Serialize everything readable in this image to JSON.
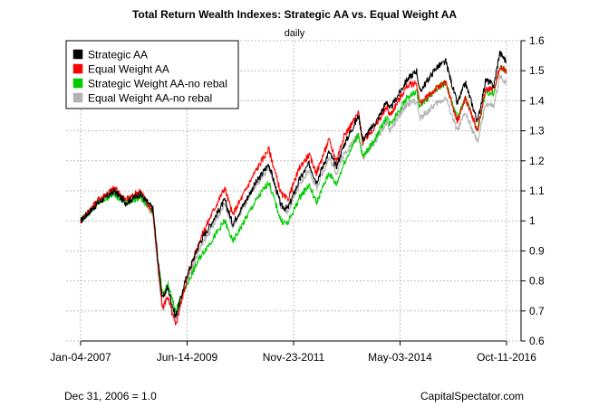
{
  "chart_data": {
    "type": "line",
    "title": "Total Return Wealth Indexes: Strategic AA vs. Equal Weight AA",
    "subtitle": "daily",
    "footnote_left": "Dec 31, 2006 = 1.0",
    "footnote_right": "CapitalSpectator.com",
    "x_tick_labels": [
      "Jan-04-2007",
      "Jun-14-2009",
      "Nov-23-2011",
      "May-03-2014",
      "Oct-11-2016"
    ],
    "y_ticks": [
      0.6,
      0.7,
      0.8,
      0.9,
      1.0,
      1.1,
      1.2,
      1.3,
      1.4,
      1.5,
      1.6
    ],
    "y_tick_labels": [
      "0.6",
      "0.7",
      "0.8",
      "0.9",
      "1",
      "1.1",
      "1.2",
      "1.3",
      "1.4",
      "1.5",
      "1.6"
    ],
    "ylim": [
      0.6,
      1.6
    ],
    "xlim": [
      "2007-01-04",
      "2016-10-11"
    ],
    "y_axis_side": "right",
    "grid": true,
    "legend_position": "top-left",
    "series": [
      {
        "name": "Strategic AA",
        "color": "#000000",
        "points": [
          [
            "2007-01-04",
            1.0
          ],
          [
            "2007-06-01",
            1.06
          ],
          [
            "2007-10-15",
            1.1
          ],
          [
            "2008-01-15",
            1.06
          ],
          [
            "2008-05-15",
            1.09
          ],
          [
            "2008-09-01",
            1.04
          ],
          [
            "2008-10-15",
            0.86
          ],
          [
            "2008-11-20",
            0.74
          ],
          [
            "2009-01-01",
            0.78
          ],
          [
            "2009-03-09",
            0.68
          ],
          [
            "2009-06-14",
            0.82
          ],
          [
            "2009-10-01",
            0.93
          ],
          [
            "2010-01-15",
            1.0
          ],
          [
            "2010-04-25",
            1.07
          ],
          [
            "2010-07-01",
            0.99
          ],
          [
            "2010-12-31",
            1.12
          ],
          [
            "2011-04-29",
            1.19
          ],
          [
            "2011-08-10",
            1.05
          ],
          [
            "2011-10-04",
            1.04
          ],
          [
            "2012-01-15",
            1.14
          ],
          [
            "2012-04-01",
            1.19
          ],
          [
            "2012-06-01",
            1.13
          ],
          [
            "2012-09-15",
            1.23
          ],
          [
            "2012-11-15",
            1.18
          ],
          [
            "2013-01-15",
            1.25
          ],
          [
            "2013-05-21",
            1.35
          ],
          [
            "2013-06-25",
            1.27
          ],
          [
            "2013-10-15",
            1.33
          ],
          [
            "2014-01-15",
            1.4
          ],
          [
            "2014-02-05",
            1.37
          ],
          [
            "2014-06-30",
            1.47
          ],
          [
            "2014-09-19",
            1.5
          ],
          [
            "2014-10-15",
            1.43
          ],
          [
            "2015-03-01",
            1.51
          ],
          [
            "2015-05-21",
            1.53
          ],
          [
            "2015-08-25",
            1.39
          ],
          [
            "2015-11-01",
            1.46
          ],
          [
            "2016-02-11",
            1.33
          ],
          [
            "2016-04-20",
            1.47
          ],
          [
            "2016-06-27",
            1.45
          ],
          [
            "2016-08-15",
            1.56
          ],
          [
            "2016-10-11",
            1.53
          ]
        ]
      },
      {
        "name": "Equal Weight AA",
        "color": "#ff0000",
        "points": [
          [
            "2007-01-04",
            1.0
          ],
          [
            "2007-06-01",
            1.07
          ],
          [
            "2007-10-15",
            1.11
          ],
          [
            "2008-01-15",
            1.07
          ],
          [
            "2008-05-15",
            1.1
          ],
          [
            "2008-09-01",
            1.03
          ],
          [
            "2008-10-15",
            0.84
          ],
          [
            "2008-11-20",
            0.71
          ],
          [
            "2009-01-01",
            0.75
          ],
          [
            "2009-03-09",
            0.65
          ],
          [
            "2009-06-14",
            0.81
          ],
          [
            "2009-10-01",
            0.94
          ],
          [
            "2010-01-15",
            1.03
          ],
          [
            "2010-04-25",
            1.11
          ],
          [
            "2010-07-01",
            1.02
          ],
          [
            "2010-12-31",
            1.16
          ],
          [
            "2011-04-29",
            1.24
          ],
          [
            "2011-08-10",
            1.09
          ],
          [
            "2011-10-04",
            1.07
          ],
          [
            "2012-01-15",
            1.18
          ],
          [
            "2012-04-01",
            1.22
          ],
          [
            "2012-06-01",
            1.16
          ],
          [
            "2012-09-15",
            1.27
          ],
          [
            "2012-11-15",
            1.2
          ],
          [
            "2013-01-15",
            1.28
          ],
          [
            "2013-05-21",
            1.36
          ],
          [
            "2013-06-25",
            1.26
          ],
          [
            "2013-10-15",
            1.32
          ],
          [
            "2014-01-15",
            1.38
          ],
          [
            "2014-02-05",
            1.35
          ],
          [
            "2014-06-30",
            1.45
          ],
          [
            "2014-09-19",
            1.46
          ],
          [
            "2014-10-15",
            1.39
          ],
          [
            "2015-03-01",
            1.44
          ],
          [
            "2015-05-21",
            1.46
          ],
          [
            "2015-08-25",
            1.33
          ],
          [
            "2015-11-01",
            1.41
          ],
          [
            "2016-02-11",
            1.3
          ],
          [
            "2016-04-20",
            1.44
          ],
          [
            "2016-06-27",
            1.44
          ],
          [
            "2016-08-15",
            1.51
          ],
          [
            "2016-10-11",
            1.5
          ]
        ]
      },
      {
        "name": "Strategic Weight AA-no rebal",
        "color": "#00cc00",
        "points": [
          [
            "2007-01-04",
            1.0
          ],
          [
            "2007-06-01",
            1.06
          ],
          [
            "2007-10-15",
            1.09
          ],
          [
            "2008-01-15",
            1.06
          ],
          [
            "2008-05-15",
            1.08
          ],
          [
            "2008-09-01",
            1.03
          ],
          [
            "2008-10-15",
            0.86
          ],
          [
            "2008-11-20",
            0.75
          ],
          [
            "2009-01-01",
            0.79
          ],
          [
            "2009-03-09",
            0.7
          ],
          [
            "2009-06-14",
            0.79
          ],
          [
            "2009-10-01",
            0.88
          ],
          [
            "2010-01-15",
            0.94
          ],
          [
            "2010-04-25",
            1.0
          ],
          [
            "2010-07-01",
            0.93
          ],
          [
            "2010-12-31",
            1.06
          ],
          [
            "2011-04-29",
            1.13
          ],
          [
            "2011-08-10",
            1.0
          ],
          [
            "2011-10-04",
            0.99
          ],
          [
            "2012-01-15",
            1.08
          ],
          [
            "2012-04-01",
            1.12
          ],
          [
            "2012-06-01",
            1.06
          ],
          [
            "2012-09-15",
            1.16
          ],
          [
            "2012-11-15",
            1.12
          ],
          [
            "2013-01-15",
            1.19
          ],
          [
            "2013-05-21",
            1.29
          ],
          [
            "2013-06-25",
            1.21
          ],
          [
            "2013-10-15",
            1.28
          ],
          [
            "2014-01-15",
            1.35
          ],
          [
            "2014-02-05",
            1.32
          ],
          [
            "2014-06-30",
            1.41
          ],
          [
            "2014-09-19",
            1.43
          ],
          [
            "2014-10-15",
            1.38
          ],
          [
            "2015-03-01",
            1.44
          ],
          [
            "2015-05-21",
            1.46
          ],
          [
            "2015-08-25",
            1.34
          ],
          [
            "2015-11-01",
            1.41
          ],
          [
            "2016-02-11",
            1.3
          ],
          [
            "2016-04-20",
            1.43
          ],
          [
            "2016-06-27",
            1.42
          ],
          [
            "2016-08-15",
            1.51
          ],
          [
            "2016-10-11",
            1.5
          ]
        ]
      },
      {
        "name": "Equal Weight AA-no rebal",
        "color": "#b3b3b3",
        "points": [
          [
            "2007-01-04",
            1.0
          ],
          [
            "2007-06-01",
            1.07
          ],
          [
            "2007-10-15",
            1.1
          ],
          [
            "2008-01-15",
            1.06
          ],
          [
            "2008-05-15",
            1.08
          ],
          [
            "2008-09-01",
            1.02
          ],
          [
            "2008-10-15",
            0.83
          ],
          [
            "2008-11-20",
            0.7
          ],
          [
            "2009-01-01",
            0.74
          ],
          [
            "2009-03-09",
            0.67
          ],
          [
            "2009-06-14",
            0.8
          ],
          [
            "2009-10-01",
            0.91
          ],
          [
            "2010-01-15",
            0.98
          ],
          [
            "2010-04-25",
            1.06
          ],
          [
            "2010-07-01",
            0.98
          ],
          [
            "2010-12-31",
            1.11
          ],
          [
            "2011-04-29",
            1.18
          ],
          [
            "2011-08-10",
            1.05
          ],
          [
            "2011-10-04",
            1.03
          ],
          [
            "2012-01-15",
            1.12
          ],
          [
            "2012-04-01",
            1.17
          ],
          [
            "2012-06-01",
            1.11
          ],
          [
            "2012-09-15",
            1.21
          ],
          [
            "2012-11-15",
            1.16
          ],
          [
            "2013-01-15",
            1.22
          ],
          [
            "2013-05-21",
            1.29
          ],
          [
            "2013-06-25",
            1.21
          ],
          [
            "2013-10-15",
            1.27
          ],
          [
            "2014-01-15",
            1.33
          ],
          [
            "2014-02-05",
            1.3
          ],
          [
            "2014-06-30",
            1.39
          ],
          [
            "2014-09-19",
            1.4
          ],
          [
            "2014-10-15",
            1.34
          ],
          [
            "2015-03-01",
            1.39
          ],
          [
            "2015-05-21",
            1.41
          ],
          [
            "2015-08-25",
            1.3
          ],
          [
            "2015-11-01",
            1.36
          ],
          [
            "2016-02-11",
            1.26
          ],
          [
            "2016-04-20",
            1.39
          ],
          [
            "2016-06-27",
            1.38
          ],
          [
            "2016-08-15",
            1.48
          ],
          [
            "2016-10-11",
            1.46
          ]
        ]
      }
    ]
  }
}
